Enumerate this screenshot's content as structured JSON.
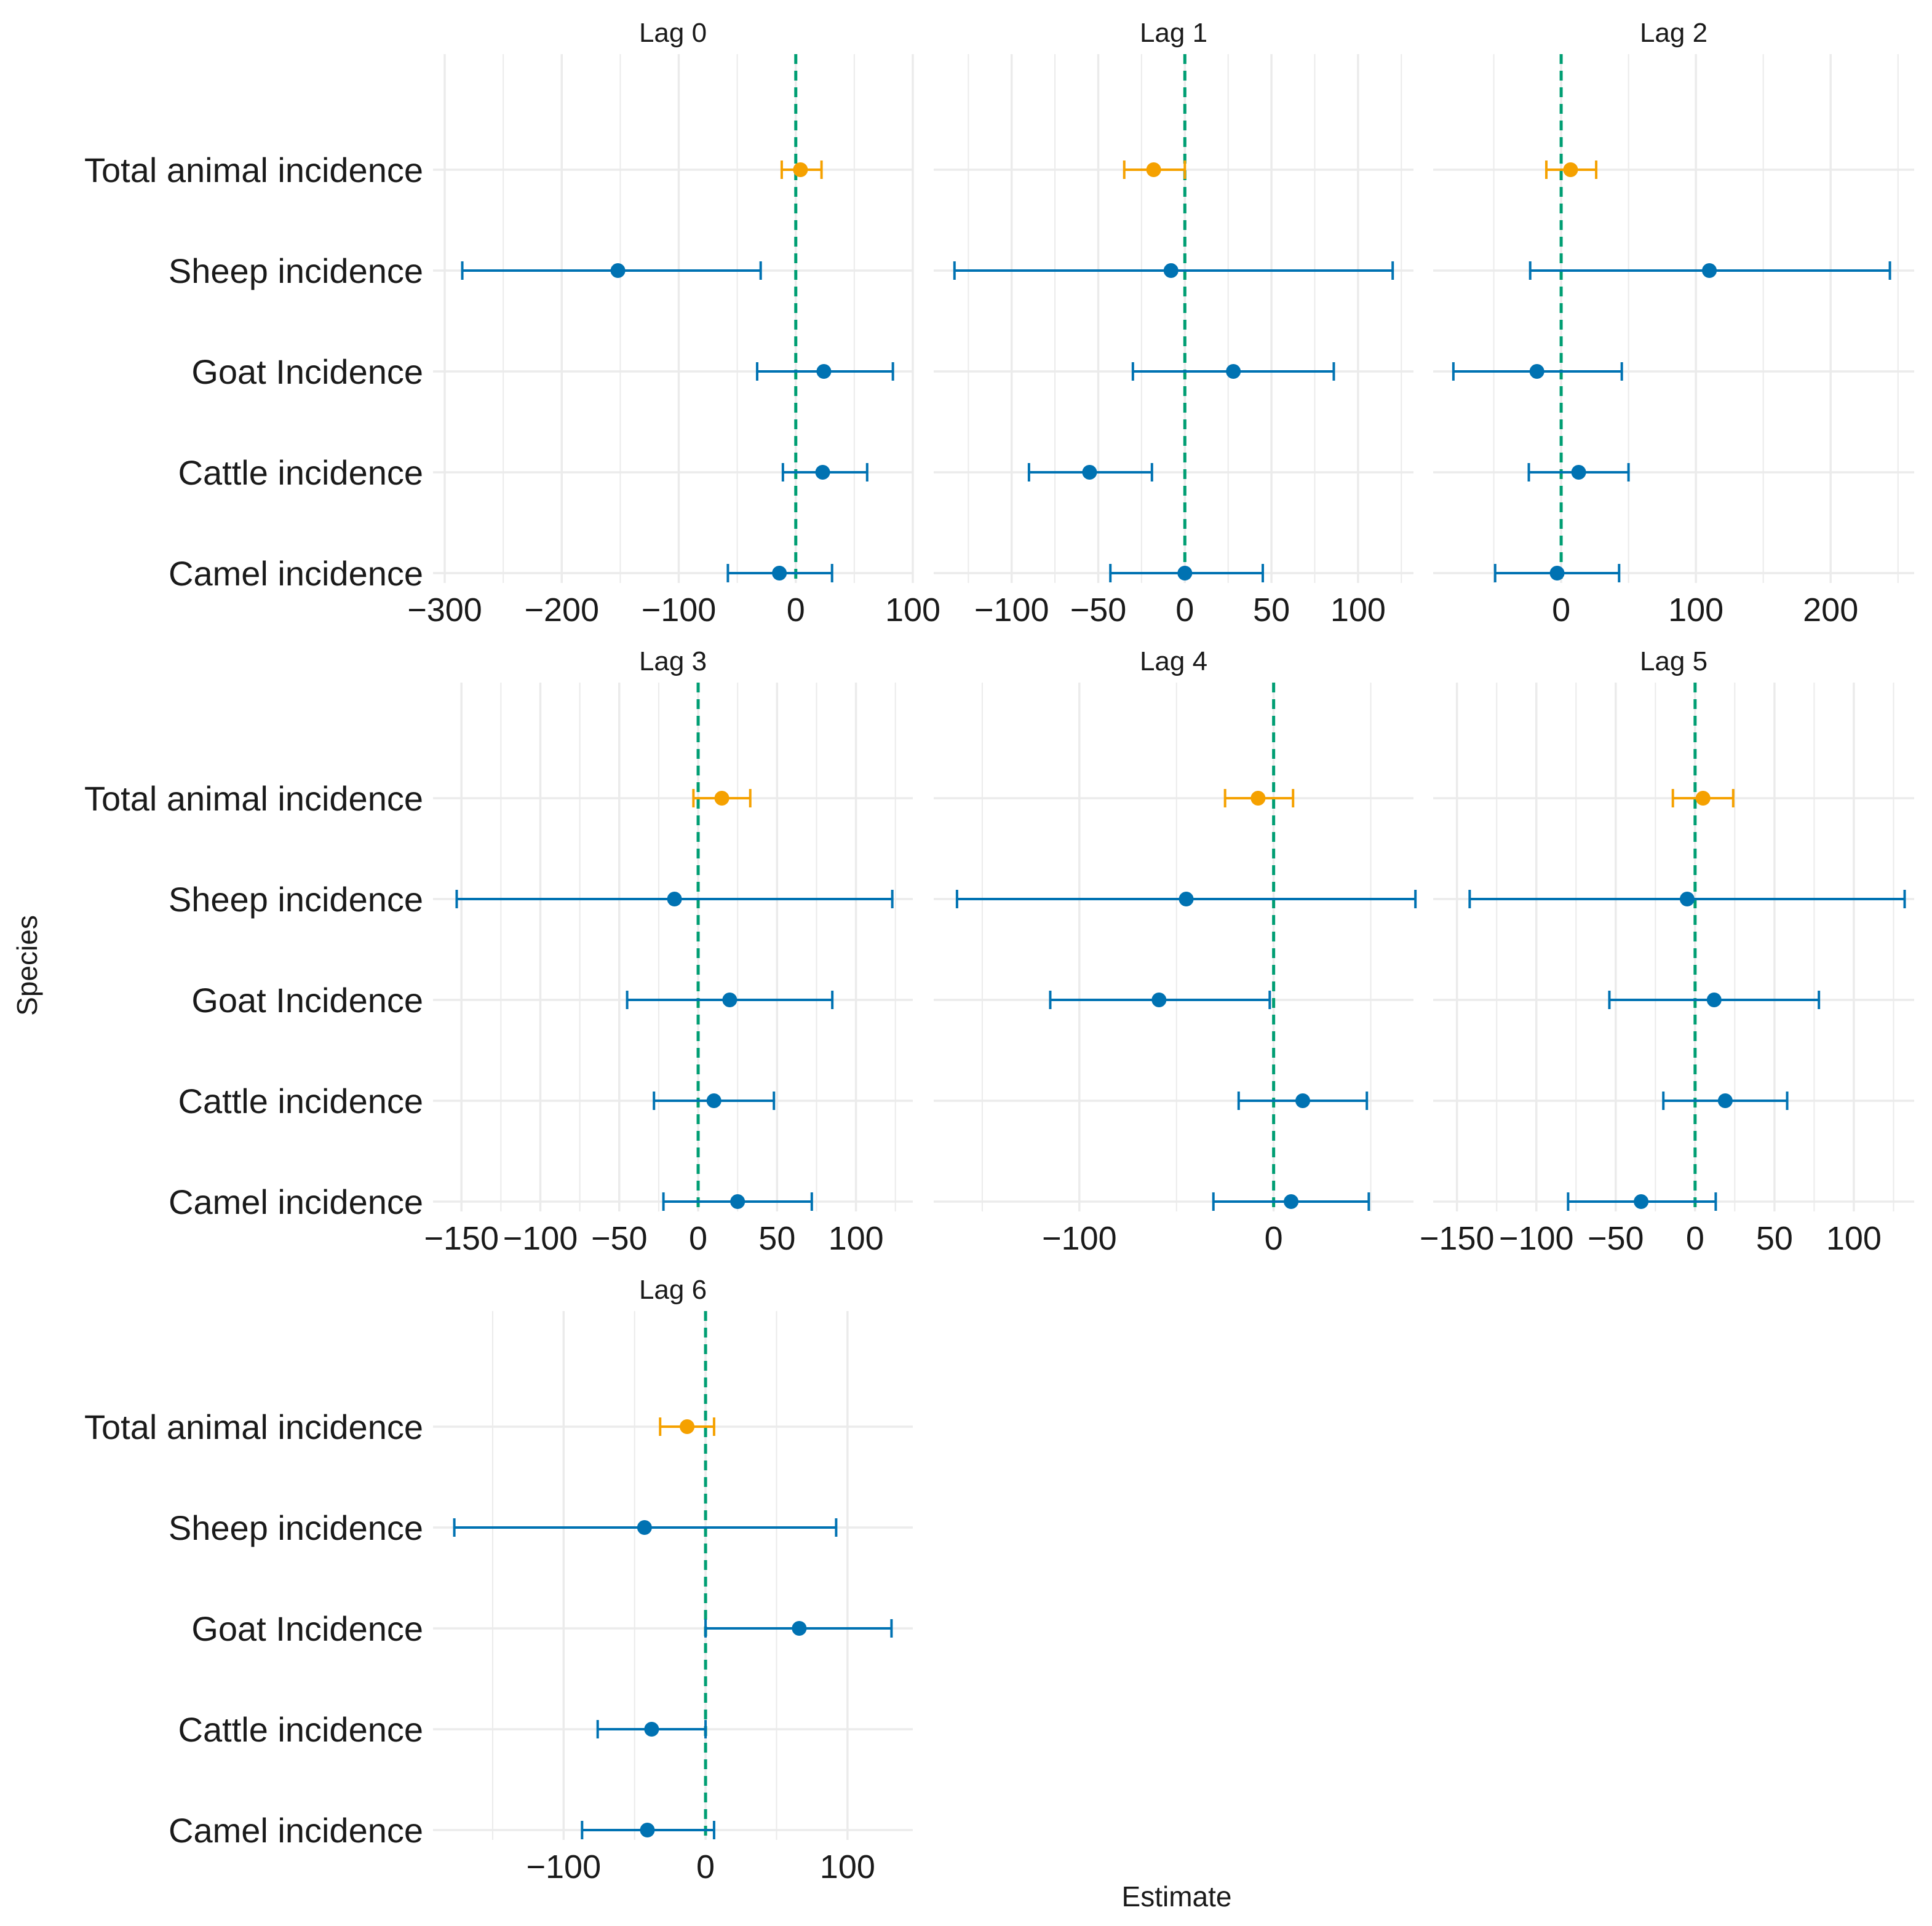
{
  "chart_data": {
    "type": "scatter",
    "subtype": "forest-plot",
    "xlabel": "Estimate",
    "ylabel": "Species",
    "categories": [
      "Total animal incidence",
      "Sheep incidence",
      "Goat Incidence",
      "Cattle incidence",
      "Camel incidence"
    ],
    "colors": {
      "total": "#F5A100",
      "species": "#0072B2",
      "zero_line": "#009E73",
      "grid": "#EBEBEB"
    },
    "panels": [
      {
        "title": "Lag 0",
        "xlim": [
          -310,
          100
        ],
        "xticks": [
          -300,
          -200,
          -100,
          0,
          100
        ],
        "xtick_labels": [
          "−300",
          "−200",
          "−100",
          "0",
          "100"
        ],
        "points": [
          {
            "estimate": 4,
            "lower": -12,
            "upper": 22
          },
          {
            "estimate": -152,
            "lower": -285,
            "upper": -30
          },
          {
            "estimate": 24,
            "lower": -33,
            "upper": 83
          },
          {
            "estimate": 23,
            "lower": -11,
            "upper": 61
          },
          {
            "estimate": -14,
            "lower": -58,
            "upper": 31
          }
        ]
      },
      {
        "title": "Lag 1",
        "xlim": [
          -145,
          132
        ],
        "xticks": [
          -100,
          -50,
          0,
          50,
          100
        ],
        "xtick_labels": [
          "−100",
          "−50",
          "0",
          "50",
          "100"
        ],
        "points": [
          {
            "estimate": -18,
            "lower": -35,
            "upper": 0
          },
          {
            "estimate": -8,
            "lower": -133,
            "upper": 120
          },
          {
            "estimate": 28,
            "lower": -30,
            "upper": 86
          },
          {
            "estimate": -55,
            "lower": -90,
            "upper": -19
          },
          {
            "estimate": 0,
            "lower": -43,
            "upper": 45
          }
        ]
      },
      {
        "title": "Lag 2",
        "xlim": [
          -95,
          262
        ],
        "xticks": [
          0,
          100,
          200
        ],
        "xtick_labels": [
          "0",
          "100",
          "200"
        ],
        "points": [
          {
            "estimate": 7,
            "lower": -11,
            "upper": 26
          },
          {
            "estimate": 110,
            "lower": -23,
            "upper": 244
          },
          {
            "estimate": -18,
            "lower": -80,
            "upper": 45
          },
          {
            "estimate": 13,
            "lower": -24,
            "upper": 50
          },
          {
            "estimate": -3,
            "lower": -49,
            "upper": 43
          }
        ]
      },
      {
        "title": "Lag 3",
        "xlim": [
          -168,
          136
        ],
        "xticks": [
          -150,
          -100,
          -50,
          0,
          50,
          100
        ],
        "xtick_labels": [
          "−150",
          "−100",
          "−50",
          "0",
          "50",
          "100"
        ],
        "points": [
          {
            "estimate": 15,
            "lower": -3,
            "upper": 33
          },
          {
            "estimate": -15,
            "lower": -153,
            "upper": 123
          },
          {
            "estimate": 20,
            "lower": -45,
            "upper": 85
          },
          {
            "estimate": 10,
            "lower": -28,
            "upper": 48
          },
          {
            "estimate": 25,
            "lower": -22,
            "upper": 72
          }
        ]
      },
      {
        "title": "Lag 4",
        "xlim": [
          -175,
          72
        ],
        "xticks": [
          -100,
          0
        ],
        "xtick_labels": [
          "−100",
          "0"
        ],
        "points": [
          {
            "estimate": -8,
            "lower": -25,
            "upper": 10
          },
          {
            "estimate": -45,
            "lower": -163,
            "upper": 73
          },
          {
            "estimate": -59,
            "lower": -115,
            "upper": -2
          },
          {
            "estimate": 15,
            "lower": -18,
            "upper": 48
          },
          {
            "estimate": 9,
            "lower": -31,
            "upper": 49
          }
        ]
      },
      {
        "title": "Lag 5",
        "xlim": [
          -165,
          138
        ],
        "xticks": [
          -150,
          -100,
          -50,
          0,
          50,
          100
        ],
        "xtick_labels": [
          "−150",
          "−100",
          "−50",
          "0",
          "50",
          "100"
        ],
        "points": [
          {
            "estimate": 5,
            "lower": -14,
            "upper": 24
          },
          {
            "estimate": -5,
            "lower": -142,
            "upper": 132
          },
          {
            "estimate": 12,
            "lower": -54,
            "upper": 78
          },
          {
            "estimate": 19,
            "lower": -20,
            "upper": 58
          },
          {
            "estimate": -34,
            "lower": -80,
            "upper": 13
          }
        ]
      },
      {
        "title": "Lag 6",
        "xlim": [
          -192,
          146
        ],
        "xticks": [
          -100,
          0,
          100
        ],
        "xtick_labels": [
          "−100",
          "0",
          "100"
        ],
        "points": [
          {
            "estimate": -13,
            "lower": -32,
            "upper": 6
          },
          {
            "estimate": -43,
            "lower": -177,
            "upper": 92
          },
          {
            "estimate": 66,
            "lower": 0,
            "upper": 131
          },
          {
            "estimate": -38,
            "lower": -76,
            "upper": 0
          },
          {
            "estimate": -41,
            "lower": -87,
            "upper": 6
          }
        ]
      }
    ]
  }
}
